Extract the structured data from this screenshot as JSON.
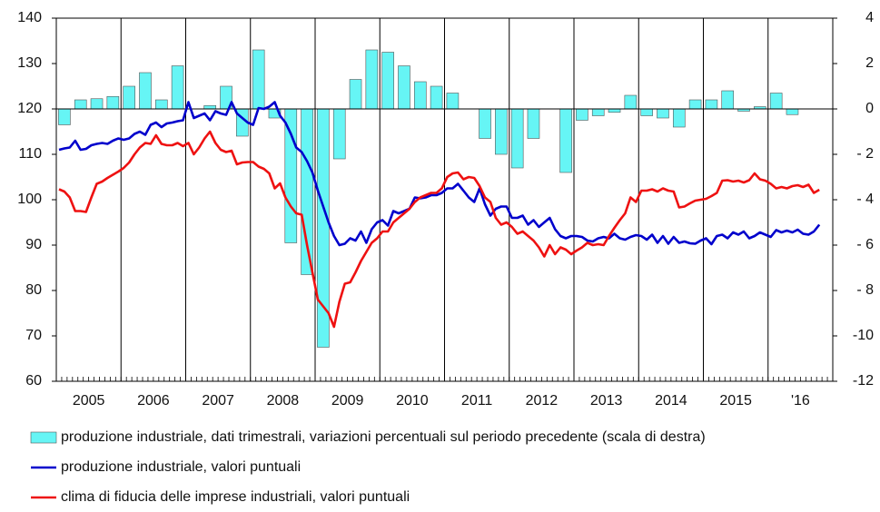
{
  "chart_data": {
    "type": "combo",
    "categories": [
      null,
      null,
      null,
      null,
      null,
      null,
      "2005",
      null,
      null,
      null,
      null,
      null,
      null,
      null,
      null,
      null,
      null,
      null,
      "2006",
      null,
      null,
      null,
      null,
      null,
      null,
      null,
      null,
      null,
      null,
      null,
      "2007",
      null,
      null,
      null,
      null,
      null,
      null,
      null,
      null,
      null,
      null,
      null,
      "2008",
      null,
      null,
      null,
      null,
      null,
      null,
      null,
      null,
      null,
      null,
      null,
      "2009",
      null,
      null,
      null,
      null,
      null,
      null,
      null,
      null,
      null,
      null,
      null,
      "2010",
      null,
      null,
      null,
      null,
      null,
      null,
      null,
      null,
      null,
      null,
      null,
      "2011",
      null,
      null,
      null,
      null,
      null,
      null,
      null,
      null,
      null,
      null,
      null,
      "2012",
      null,
      null,
      null,
      null,
      null,
      null,
      null,
      null,
      null,
      null,
      null,
      "2013",
      null,
      null,
      null,
      null,
      null,
      null,
      null,
      null,
      null,
      null,
      null,
      "2014",
      null,
      null,
      null,
      null,
      null,
      null,
      null,
      null,
      null,
      null,
      null,
      "2015",
      null,
      null,
      null,
      null,
      null,
      null,
      null,
      null,
      null,
      null,
      null,
      "'16",
      null,
      null,
      null,
      null,
      null
    ],
    "ylim": [
      60,
      140
    ],
    "yticks": [
      60,
      70,
      80,
      90,
      100,
      110,
      120,
      130,
      140
    ],
    "y2lim": [
      -12,
      4
    ],
    "y2ticks": [
      {
        "value": -12,
        "label": "-12"
      },
      -10,
      {
        "value": -8,
        "label": "- 8"
      },
      {
        "value": -6,
        "label": "- 6"
      },
      {
        "value": -4,
        "label": "- 4"
      },
      {
        "value": -2,
        "label": "- 2"
      },
      0,
      2,
      4
    ],
    "series": [
      {
        "name": "produzione industriale, dati trimestrali, variazioni percentuali sul periodo precedente (scala di destra)",
        "type": "bar",
        "axis": "y2",
        "color": "#66f5f5",
        "values": [
          null,
          -0.7,
          null,
          null,
          0.4,
          null,
          null,
          0.45,
          null,
          null,
          0.55,
          null,
          null,
          1.0,
          null,
          null,
          1.6,
          null,
          null,
          0.4,
          null,
          null,
          1.9,
          null,
          null,
          0,
          null,
          null,
          0.15,
          null,
          null,
          1.0,
          null,
          null,
          -1.2,
          null,
          null,
          2.6,
          null,
          null,
          -0.4,
          null,
          null,
          -5.9,
          null,
          null,
          -7.3,
          null,
          null,
          -10.5,
          null,
          null,
          -2.2,
          null,
          null,
          1.3,
          null,
          null,
          2.6,
          null,
          null,
          2.5,
          null,
          null,
          1.9,
          null,
          null,
          1.2,
          null,
          null,
          1.0,
          null,
          null,
          0.7,
          null,
          null,
          0,
          null,
          null,
          -1.3,
          null,
          null,
          -2.0,
          null,
          null,
          -2.6,
          null,
          null,
          -1.3,
          null,
          null,
          0,
          null,
          null,
          -2.8,
          null,
          null,
          -0.5,
          null,
          null,
          -0.3,
          null,
          null,
          -0.15,
          null,
          null,
          0.6,
          null,
          null,
          -0.3,
          null,
          null,
          -0.4,
          null,
          null,
          -0.8,
          null,
          null,
          0.4,
          null,
          null,
          0.4,
          null,
          null,
          0.8,
          null,
          null,
          -0.1,
          null,
          null,
          0.1,
          null,
          null,
          0.7,
          null,
          null,
          -0.25,
          null,
          null,
          null,
          null,
          null,
          null,
          null
        ]
      },
      {
        "name": "produzione industriale, valori puntuali",
        "type": "line",
        "color": "#0000cc",
        "values": [
          111,
          111.3,
          111.5,
          113,
          111,
          111.2,
          112,
          112.3,
          112.5,
          112.3,
          113,
          113.5,
          113.2,
          113.5,
          114.5,
          115,
          114.3,
          116.5,
          117,
          116,
          116.8,
          117,
          117.3,
          117.5,
          121.5,
          118,
          118.5,
          119,
          117.5,
          119.5,
          119,
          118.7,
          121.5,
          119,
          118,
          117,
          116.5,
          120.2,
          120,
          120.5,
          121.5,
          118.5,
          117,
          114.5,
          111.5,
          110.5,
          108.5,
          106,
          102,
          98.5,
          95,
          92,
          90,
          90.3,
          91.5,
          91,
          93,
          90.5,
          93.5,
          95,
          95.5,
          94.3,
          97.5,
          97,
          97.5,
          98,
          100.5,
          100.3,
          100.5,
          101,
          101,
          101.5,
          102.5,
          102.5,
          103.5,
          102,
          100.5,
          99.5,
          102.5,
          99,
          96.5,
          98,
          98.5,
          98.5,
          96,
          96,
          96.5,
          94.5,
          95.5,
          94,
          95,
          96,
          93.5,
          92,
          91.5,
          92,
          92,
          91.8,
          91,
          90.8,
          91.5,
          91.8,
          91.5,
          92.5,
          91.5,
          91.2,
          91.8,
          92.2,
          92,
          91.2,
          92.3,
          90.5,
          92,
          90.3,
          91.8,
          90.5,
          90.8,
          90.4,
          90.3,
          91,
          91.5,
          90.2,
          92,
          92.3,
          91.5,
          92.8,
          92.3,
          93,
          91.5,
          92,
          92.8,
          92.3,
          91.8,
          93.3,
          92.8,
          93.2,
          92.8,
          93.4,
          92.5,
          92.3,
          93,
          94.5,
          null,
          null
        ]
      },
      {
        "name": "clima di fiducia delle imprese industriali, valori puntuali",
        "type": "line",
        "color": "#ee1111",
        "values": [
          102.3,
          101.8,
          100.5,
          97.5,
          97.5,
          97.3,
          100.5,
          103.5,
          104,
          104.8,
          105.5,
          106.2,
          107,
          108.2,
          110,
          111.5,
          112.5,
          112.3,
          114.2,
          112.3,
          112,
          112,
          112.5,
          111.8,
          112.5,
          110,
          111.5,
          113.5,
          115,
          112.5,
          111,
          110.5,
          110.8,
          107.8,
          108.2,
          108.3,
          108.3,
          107.3,
          106.8,
          105.8,
          102.5,
          103.6,
          100.5,
          98.5,
          97,
          96.7,
          90,
          84,
          78,
          76.5,
          75,
          72,
          77.5,
          81.5,
          81.8,
          84,
          86.5,
          88.5,
          90.5,
          91.5,
          93,
          93,
          95,
          96,
          97,
          98,
          99.5,
          100.5,
          101,
          101.5,
          101.5,
          102.5,
          105,
          105.8,
          106,
          104.5,
          105,
          104.8,
          103,
          100.5,
          99.5,
          96,
          94.5,
          95,
          94,
          92.5,
          93,
          92,
          91,
          89.5,
          87.5,
          90,
          88,
          89.5,
          89,
          88,
          88.8,
          89.5,
          90.5,
          90,
          90.2,
          90,
          92,
          93.8,
          95.5,
          97,
          100.5,
          99.5,
          102,
          102,
          102.3,
          101.8,
          102.5,
          102,
          101.8,
          98.3,
          98.5,
          99.2,
          99.8,
          100,
          100.2,
          100.8,
          101.5,
          104.2,
          104.3,
          104,
          104.2,
          103.8,
          104.3,
          105.8,
          104.5,
          104.2,
          103.5,
          102.5,
          102.8,
          102.5,
          103,
          103.2,
          102.8,
          103.3,
          101.5,
          102.2,
          null,
          null
        ]
      }
    ]
  }
}
